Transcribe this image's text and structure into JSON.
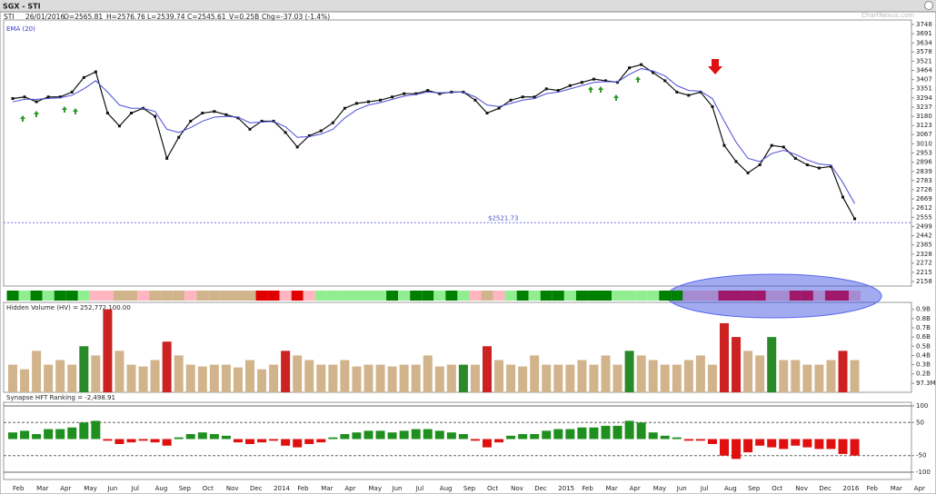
{
  "header": {
    "title": "SGX - STI",
    "info": [
      "STI",
      "26/01/2016",
      "O=2565.81",
      "H=2576.76",
      "L=2539.74",
      "C=2545.61",
      "V=0.25B",
      "Chg=-37.03 (-1.4%)"
    ],
    "watermark": "ChartNexus.com"
  },
  "chart_data": [
    {
      "type": "line",
      "ylim": [
        2130,
        3776
      ],
      "yticks": [
        3748,
        3691,
        3634,
        3578,
        3521,
        3464,
        3407,
        3351,
        3294,
        3237,
        3180,
        3123,
        3067,
        3010,
        2953,
        2896,
        2839,
        2783,
        2726,
        2669,
        2612,
        2555,
        2499,
        2442,
        2385,
        2328,
        2272,
        2215,
        2158
      ],
      "series": [
        {
          "color": "#111111",
          "values": [
            3290,
            3300,
            3270,
            3300,
            3300,
            3330,
            3420,
            3455,
            3200,
            3120,
            3200,
            3230,
            3180,
            2920,
            3050,
            3150,
            3200,
            3210,
            3190,
            3170,
            3100,
            3150,
            3150,
            3080,
            2990,
            3060,
            3090,
            3140,
            3230,
            3260,
            3270,
            3280,
            3300,
            3320,
            3320,
            3340,
            3320,
            3330,
            3330,
            3280,
            3200,
            3230,
            3280,
            3300,
            3300,
            3350,
            3340,
            3370,
            3390,
            3410,
            3400,
            3390,
            3480,
            3500,
            3450,
            3400,
            3330,
            3310,
            3330,
            3240,
            3000,
            2900,
            2830,
            2880,
            3000,
            2990,
            2920,
            2880,
            2860,
            2870,
            2680,
            2546
          ]
        },
        {
          "name": "EMA (20)",
          "color": "#4b4bd8",
          "values": [
            3270,
            3285,
            3285,
            3290,
            3295,
            3310,
            3350,
            3400,
            3330,
            3250,
            3230,
            3230,
            3210,
            3100,
            3080,
            3110,
            3150,
            3175,
            3180,
            3175,
            3140,
            3145,
            3148,
            3115,
            3050,
            3055,
            3070,
            3100,
            3170,
            3220,
            3250,
            3265,
            3285,
            3305,
            3315,
            3330,
            3325,
            3328,
            3330,
            3300,
            3250,
            3240,
            3260,
            3280,
            3290,
            3320,
            3330,
            3350,
            3370,
            3390,
            3395,
            3392,
            3440,
            3475,
            3460,
            3430,
            3370,
            3340,
            3335,
            3290,
            3150,
            3020,
            2920,
            2900,
            2950,
            2970,
            2945,
            2910,
            2885,
            2878,
            2770,
            2640
          ]
        }
      ],
      "support": {
        "value": 2521.73,
        "label": "$2521.73"
      },
      "band": [
        "#008000",
        "#90ee90",
        "#008000",
        "#90ee90",
        "#008000",
        "#008000",
        "#90ee90",
        "#ffb6c1",
        "#ffb6c1",
        "#d2b48c",
        "#d2b48c",
        "#ffb6c1",
        "#d2b48c",
        "#d2b48c",
        "#d2b48c",
        "#ffb6c1",
        "#d2b48c",
        "#d2b48c",
        "#d2b48c",
        "#d2b48c",
        "#d2b48c",
        "#e00000",
        "#e00000",
        "#ffb6c1",
        "#e00000",
        "#ffb6c1",
        "#90ee90",
        "#90ee90",
        "#90ee90",
        "#90ee90",
        "#90ee90",
        "#90ee90",
        "#008000",
        "#90ee90",
        "#008000",
        "#008000",
        "#90ee90",
        "#008000",
        "#90ee90",
        "#ffb6c1",
        "#d2b48c",
        "#ffb6c1",
        "#90ee90",
        "#008000",
        "#90ee90",
        "#008000",
        "#008000",
        "#90ee90",
        "#008000",
        "#008000",
        "#008000",
        "#90ee90",
        "#90ee90",
        "#90ee90",
        "#90ee90",
        "#008000",
        "#008000",
        "#a78bd0",
        "#a78bd0",
        "#a78bd0",
        "#a0186a",
        "#a0186a",
        "#a0186a",
        "#a0186a",
        "#a78bd0",
        "#a78bd0",
        "#a0186a",
        "#a0186a",
        "#a78bd0",
        "#a0186a",
        "#a0186a",
        "#a78bd0"
      ]
    },
    {
      "type": "bar",
      "title": "Hidden Volume (HV) = 252,772,100.00",
      "ylim": [
        0,
        0.966
      ],
      "yticks": [
        {
          "value": 0.9,
          "label": "0.9B"
        },
        {
          "value": 0.8,
          "label": "0.8B"
        },
        {
          "value": 0.7,
          "label": "0.7B"
        },
        {
          "value": 0.6,
          "label": "0.6B"
        },
        {
          "value": 0.5,
          "label": "0.5B"
        },
        {
          "value": 0.4,
          "label": "0.4B"
        },
        {
          "value": 0.3,
          "label": "0.3B"
        },
        {
          "value": 0.2,
          "label": "0.2B"
        },
        {
          "value": 0.0973,
          "label": "97.3M"
        }
      ],
      "values": [
        0.3,
        0.25,
        0.45,
        0.3,
        0.35,
        0.3,
        0.5,
        0.4,
        0.9,
        0.45,
        0.3,
        0.28,
        0.35,
        0.55,
        0.4,
        0.3,
        0.28,
        0.3,
        0.3,
        0.27,
        0.35,
        0.25,
        0.3,
        0.45,
        0.4,
        0.35,
        0.3,
        0.3,
        0.35,
        0.28,
        0.3,
        0.3,
        0.28,
        0.3,
        0.3,
        0.4,
        0.28,
        0.3,
        0.3,
        0.3,
        0.5,
        0.35,
        0.3,
        0.28,
        0.4,
        0.3,
        0.3,
        0.3,
        0.35,
        0.3,
        0.4,
        0.3,
        0.45,
        0.4,
        0.35,
        0.3,
        0.3,
        0.35,
        0.4,
        0.3,
        0.75,
        0.6,
        0.45,
        0.4,
        0.6,
        0.35,
        0.35,
        0.3,
        0.3,
        0.35,
        0.45,
        0.35
      ],
      "colors": [
        "#d2b48c",
        "#d2b48c",
        "#d2b48c",
        "#d2b48c",
        "#d2b48c",
        "#d2b48c",
        "#2a8a2a",
        "#d2b48c",
        "#cc2222",
        "#d2b48c",
        "#d2b48c",
        "#d2b48c",
        "#d2b48c",
        "#cc2222",
        "#d2b48c",
        "#d2b48c",
        "#d2b48c",
        "#d2b48c",
        "#d2b48c",
        "#d2b48c",
        "#d2b48c",
        "#d2b48c",
        "#d2b48c",
        "#cc2222",
        "#d2b48c",
        "#d2b48c",
        "#d2b48c",
        "#d2b48c",
        "#d2b48c",
        "#d2b48c",
        "#d2b48c",
        "#d2b48c",
        "#d2b48c",
        "#d2b48c",
        "#d2b48c",
        "#d2b48c",
        "#d2b48c",
        "#d2b48c",
        "#2a8a2a",
        "#d2b48c",
        "#cc2222",
        "#d2b48c",
        "#d2b48c",
        "#d2b48c",
        "#d2b48c",
        "#d2b48c",
        "#d2b48c",
        "#d2b48c",
        "#d2b48c",
        "#d2b48c",
        "#d2b48c",
        "#d2b48c",
        "#2a8a2a",
        "#d2b48c",
        "#d2b48c",
        "#d2b48c",
        "#d2b48c",
        "#d2b48c",
        "#d2b48c",
        "#d2b48c",
        "#cc2222",
        "#cc2222",
        "#d2b48c",
        "#d2b48c",
        "#2a8a2a",
        "#d2b48c",
        "#d2b48c",
        "#d2b48c",
        "#d2b48c",
        "#d2b48c",
        "#cc2222",
        "#d2b48c"
      ]
    },
    {
      "type": "bar",
      "title": "Synapse HFT Ranking = -2,498.91",
      "ylim": [
        -122,
        111
      ],
      "yticks": [
        100,
        50,
        -50,
        -100
      ],
      "positive_color": "#1f8f1f",
      "negative_color": "#e01010",
      "values": [
        20,
        25,
        15,
        30,
        30,
        35,
        50,
        55,
        -5,
        -15,
        -10,
        -5,
        -10,
        -20,
        5,
        15,
        20,
        15,
        10,
        -10,
        -15,
        -10,
        -5,
        -20,
        -25,
        -15,
        -10,
        5,
        15,
        20,
        25,
        25,
        20,
        25,
        30,
        30,
        25,
        20,
        15,
        -5,
        -25,
        -10,
        10,
        15,
        15,
        25,
        30,
        30,
        35,
        35,
        40,
        40,
        55,
        50,
        20,
        10,
        5,
        -5,
        -5,
        -15,
        -50,
        -60,
        -40,
        -20,
        -25,
        -30,
        -20,
        -25,
        -30,
        -30,
        -45,
        -50
      ],
      "x_labels": [
        "Feb",
        "Mar",
        "Apr",
        "May",
        "Jun",
        "Jul",
        "Aug",
        "Sep",
        "Oct",
        "Nov",
        "Dec",
        "2014",
        "Feb",
        "Mar",
        "Apr",
        "May",
        "Jun",
        "Jul",
        "Aug",
        "Sep",
        "Oct",
        "Nov",
        "Dec",
        "2015",
        "Feb",
        "Mar",
        "Apr",
        "May",
        "Jun",
        "Jul",
        "Aug",
        "Sep",
        "Oct",
        "Nov",
        "Dec",
        "2016",
        "Feb",
        "Mar",
        "Apr"
      ]
    }
  ]
}
